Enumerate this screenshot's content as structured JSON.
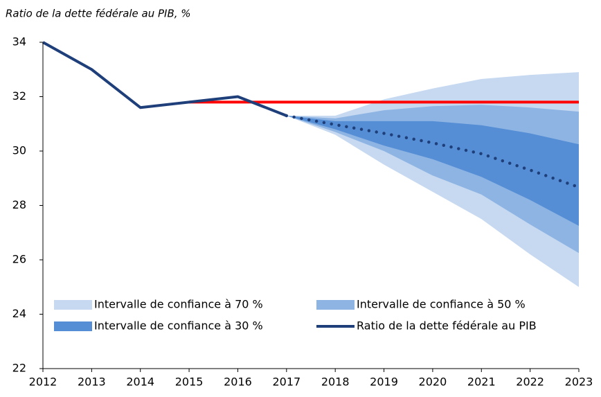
{
  "chart_data": {
    "type": "fan",
    "title": "Ratio de la dette fédérale au PIB, %",
    "x": [
      2012,
      2013,
      2014,
      2015,
      2016,
      2017,
      2018,
      2019,
      2020,
      2021,
      2022,
      2023
    ],
    "xlim": [
      2012,
      2023
    ],
    "xticks": [
      2012,
      2013,
      2014,
      2015,
      2016,
      2017,
      2018,
      2019,
      2020,
      2021,
      2022,
      2023
    ],
    "ylim": [
      22,
      34
    ],
    "yticks": [
      22,
      24,
      26,
      28,
      30,
      32,
      34
    ],
    "bands": [
      {
        "name": "Intervalle de confiance à 70 %",
        "color": "#c6d9f1",
        "upper": [
          null,
          null,
          null,
          null,
          null,
          31.3,
          31.3,
          31.9,
          32.3,
          32.65,
          32.8,
          32.9
        ],
        "lower": [
          null,
          null,
          null,
          null,
          null,
          31.3,
          30.6,
          29.5,
          28.5,
          27.5,
          26.2,
          25.0
        ]
      },
      {
        "name": "Intervalle de confiance à 50 %",
        "color": "#8eb4e3",
        "upper": [
          null,
          null,
          null,
          null,
          null,
          31.3,
          31.2,
          31.5,
          31.65,
          31.7,
          31.6,
          31.45
        ],
        "lower": [
          null,
          null,
          null,
          null,
          null,
          31.3,
          30.7,
          30.0,
          29.1,
          28.4,
          27.3,
          26.25
        ]
      },
      {
        "name": "Intervalle de confiance à 30 %",
        "color": "#558ed5",
        "upper": [
          null,
          null,
          null,
          null,
          null,
          31.3,
          31.1,
          31.1,
          31.1,
          30.95,
          30.65,
          30.25
        ],
        "lower": [
          null,
          null,
          null,
          null,
          null,
          31.3,
          30.8,
          30.2,
          29.7,
          29.05,
          28.2,
          27.25
        ]
      }
    ],
    "threshold": {
      "color": "#ff0000",
      "values": [
        null,
        null,
        null,
        31.8,
        31.8,
        31.8,
        31.8,
        31.8,
        31.8,
        31.8,
        31.8,
        31.8
      ]
    },
    "series": [
      {
        "name": "Ratio de la dette fédérale au PIB",
        "color": "#1f3f7a",
        "values": [
          34,
          33,
          31.6,
          31.8,
          32.0,
          31.3,
          30.97,
          30.65,
          30.3,
          29.9,
          29.3,
          28.67
        ]
      }
    ],
    "dashed_from": 2017
  }
}
